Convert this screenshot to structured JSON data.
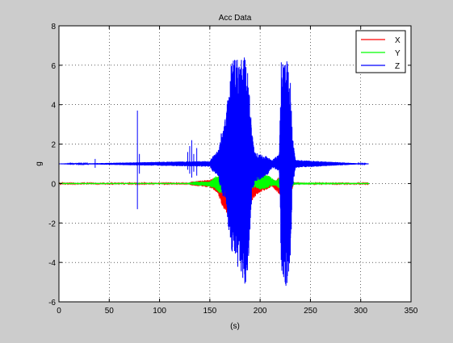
{
  "chart_data": {
    "type": "line",
    "title": "Acc Data",
    "xlabel": "(s)",
    "ylabel": "g",
    "xlim": [
      0,
      350
    ],
    "ylim": [
      -6,
      8
    ],
    "xticks": [
      0,
      50,
      100,
      150,
      200,
      250,
      300,
      350
    ],
    "yticks": [
      -6,
      -4,
      -2,
      0,
      2,
      4,
      6,
      8
    ],
    "xtick_labels": [
      "0",
      "50",
      "100",
      "150",
      "200",
      "250",
      "300",
      "350"
    ],
    "ytick_labels": [
      "-6",
      "-4",
      "-2",
      "0",
      "2",
      "4",
      "6",
      "8"
    ],
    "grid": true,
    "legend_position": "top-right",
    "x_end": 308,
    "series": [
      {
        "name": "X",
        "color": "#ff0000",
        "baseline": 0.0,
        "envelope": [
          [
            0,
            -0.02,
            0.02
          ],
          [
            128,
            -0.02,
            0.02
          ],
          [
            132,
            -0.1,
            0.1
          ],
          [
            150,
            -0.2,
            0.2
          ],
          [
            158,
            -0.5,
            0.35
          ],
          [
            163,
            -1.3,
            0.4
          ],
          [
            170,
            -1.7,
            0.35
          ],
          [
            175,
            -1.2,
            0.3
          ],
          [
            180,
            -1.4,
            0.3
          ],
          [
            188,
            -1.2,
            0.3
          ],
          [
            193,
            -0.8,
            0.25
          ],
          [
            198,
            -0.5,
            0.3
          ],
          [
            202,
            -0.4,
            0.35
          ],
          [
            207,
            -0.3,
            0.25
          ],
          [
            212,
            -0.15,
            0.15
          ],
          [
            218,
            -0.5,
            0.3
          ],
          [
            222,
            -0.7,
            0.3
          ],
          [
            226,
            -0.8,
            0.35
          ],
          [
            230,
            -0.6,
            0.3
          ],
          [
            233,
            -0.1,
            0.1
          ],
          [
            236,
            -0.02,
            0.02
          ],
          [
            308,
            -0.02,
            0.02
          ]
        ]
      },
      {
        "name": "Y",
        "color": "#00ff00",
        "baseline": 0.0,
        "envelope": [
          [
            0,
            -0.03,
            0.03
          ],
          [
            128,
            -0.03,
            0.03
          ],
          [
            135,
            -0.08,
            0.1
          ],
          [
            150,
            -0.15,
            0.1
          ],
          [
            155,
            -0.3,
            0.35
          ],
          [
            160,
            -0.5,
            0.4
          ],
          [
            165,
            -0.5,
            0.5
          ],
          [
            172,
            -0.6,
            0.4
          ],
          [
            180,
            -0.4,
            0.5
          ],
          [
            190,
            -0.3,
            0.4
          ],
          [
            195,
            -0.2,
            0.3
          ],
          [
            200,
            -0.3,
            0.45
          ],
          [
            205,
            -0.3,
            0.5
          ],
          [
            210,
            -0.15,
            0.35
          ],
          [
            215,
            -0.1,
            0.15
          ],
          [
            220,
            -0.3,
            0.3
          ],
          [
            225,
            -0.4,
            0.3
          ],
          [
            230,
            -0.3,
            0.25
          ],
          [
            234,
            -0.05,
            0.05
          ],
          [
            308,
            -0.03,
            0.03
          ]
        ]
      },
      {
        "name": "Z",
        "color": "#0000ff",
        "baseline": 1.0,
        "envelope": [
          [
            0,
            1.0,
            1.0
          ],
          [
            150,
            0.85,
            1.15
          ],
          [
            153,
            0.6,
            1.4
          ],
          [
            158,
            0.4,
            1.7
          ],
          [
            163,
            -0.8,
            3.0
          ],
          [
            166,
            -1.0,
            3.5
          ],
          [
            170,
            -3.0,
            5.5
          ],
          [
            172,
            -4.0,
            6.4
          ],
          [
            180,
            -4.5,
            6.4
          ],
          [
            185,
            -5.3,
            6.4
          ],
          [
            188,
            -4.3,
            5.5
          ],
          [
            192,
            -0.5,
            2.5
          ],
          [
            195,
            0.1,
            1.6
          ],
          [
            200,
            0.2,
            1.5
          ],
          [
            207,
            0.4,
            1.4
          ],
          [
            212,
            0.8,
            1.2
          ],
          [
            219,
            0.6,
            1.5
          ],
          [
            221,
            -4.5,
            6.4
          ],
          [
            226,
            -5.3,
            6.4
          ],
          [
            230,
            -4.2,
            5.6
          ],
          [
            232,
            -0.5,
            2.5
          ],
          [
            235,
            0.8,
            1.2
          ],
          [
            308,
            1.0,
            1.0
          ]
        ],
        "spikes": [
          [
            36,
            0.8,
            1.25
          ],
          [
            78,
            -1.3,
            3.7
          ],
          [
            80,
            0.5,
            1.5
          ],
          [
            128,
            0.7,
            1.6
          ],
          [
            130,
            0.5,
            1.9
          ],
          [
            132,
            0.3,
            2.2
          ],
          [
            134,
            0.6,
            1.5
          ],
          [
            137,
            0.4,
            1.8
          ]
        ]
      }
    ]
  }
}
